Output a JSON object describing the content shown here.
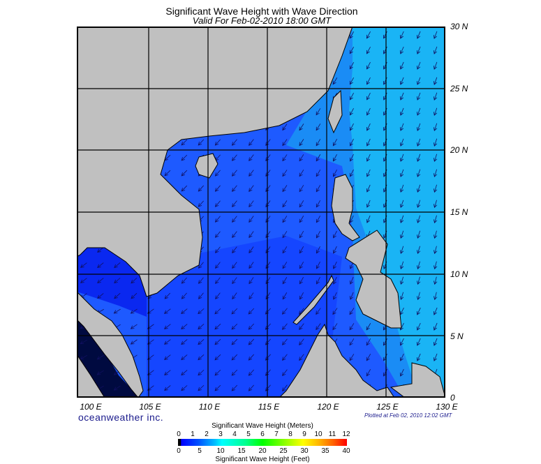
{
  "title": "Significant Wave Height with Wave Direction",
  "subtitle": "Valid For Feb-02-2010 18:00 GMT",
  "lon_labels": [
    "100 E",
    "105 E",
    "110 E",
    "115 E",
    "120 E",
    "125 E",
    "130 E"
  ],
  "lat_labels": [
    "30 N",
    "25 N",
    "20 N",
    "15 N",
    "10 N",
    "5 N",
    "0"
  ],
  "brand": "oceanweather inc.",
  "plotted": "Plotted at Feb 02, 2010 12:02 GMT",
  "colorbar": {
    "title_m": "Significant Wave Height (Meters)",
    "title_ft": "Significant Wave Height (Feet)",
    "meters": [
      "0",
      "1",
      "2",
      "3",
      "4",
      "5",
      "6",
      "7",
      "8",
      "9",
      "10",
      "11",
      "12"
    ],
    "feet": [
      "0",
      "5",
      "10",
      "15",
      "20",
      "25",
      "30",
      "35",
      "40"
    ]
  },
  "colors": {
    "land": "#c0c0c0",
    "ocean_low": "#0a1ef0",
    "ocean_mid": "#1e5aff",
    "ocean_high": "#1ab4f5",
    "strait": "#000a40",
    "arrow": "#101060"
  }
}
